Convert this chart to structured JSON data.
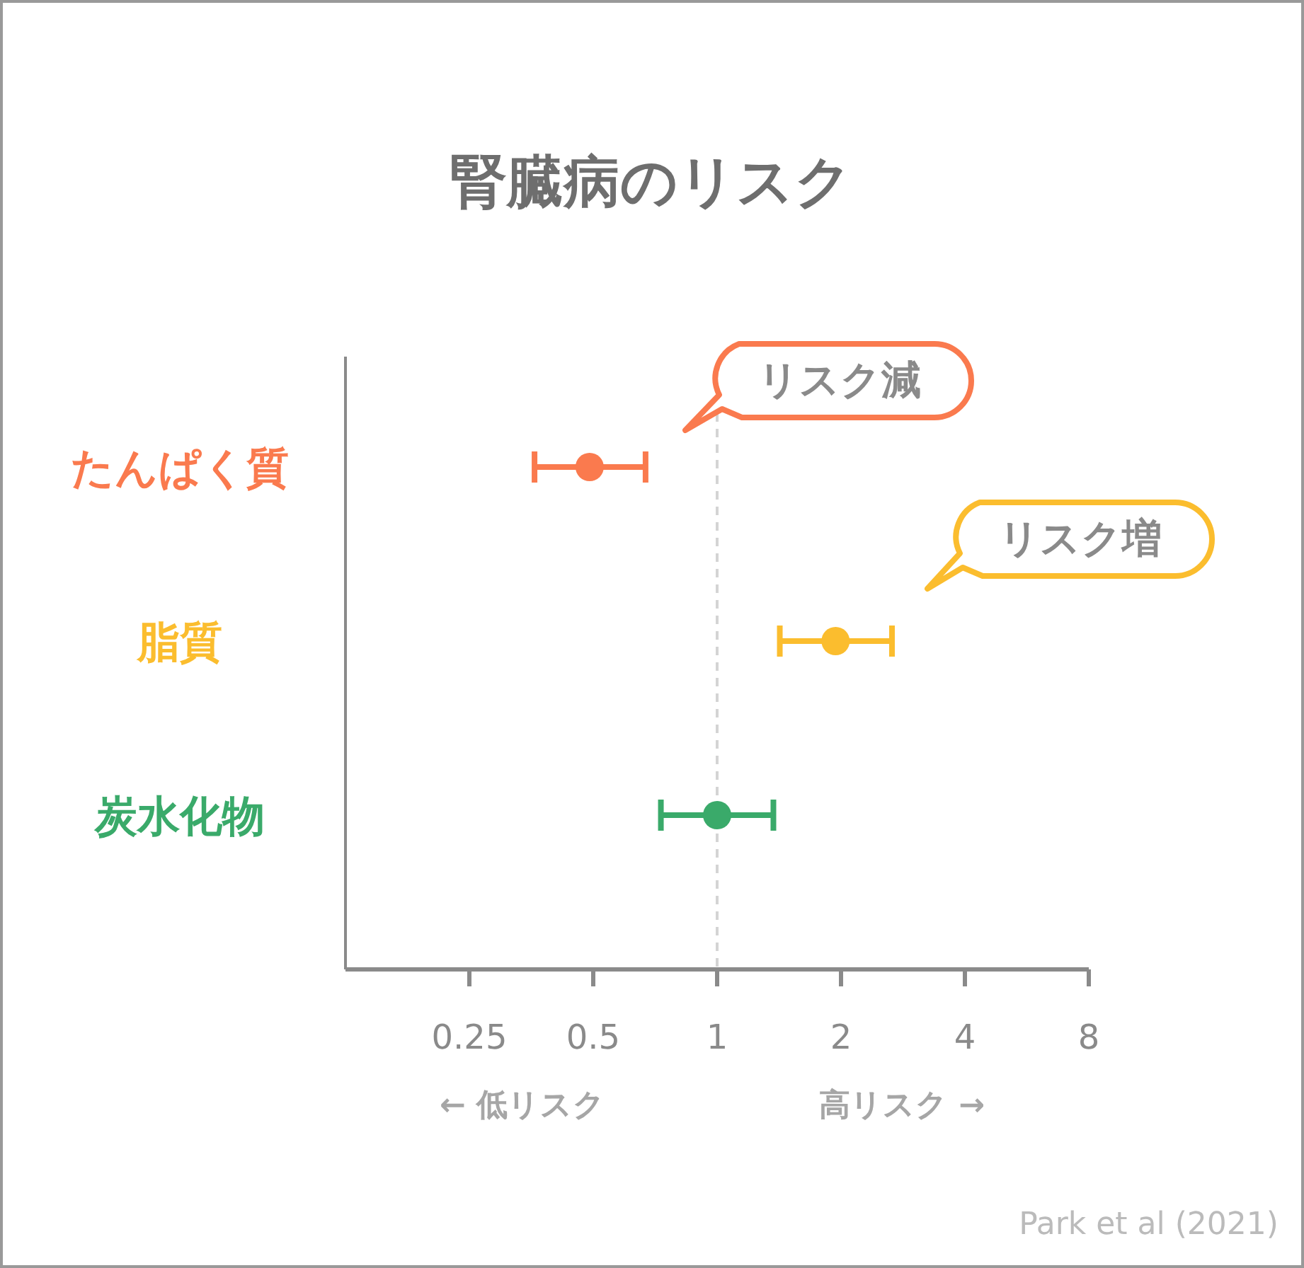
{
  "chart_data": {
    "type": "scatter",
    "orientation": "horizontal",
    "title": "腎臓病のリスク",
    "categories": [
      "たんぱく質",
      "脂質",
      "炭水化物"
    ],
    "values": [
      0.49,
      1.94,
      1.0
    ],
    "colors": [
      "#fa7a4e",
      "#fbbd2e",
      "#3aaa6a"
    ],
    "errors": [
      [
        0.36,
        0.67
      ],
      [
        1.42,
        2.66
      ],
      [
        0.73,
        1.37
      ]
    ],
    "log": "x",
    "xlim": [
      0.125,
      8
    ],
    "xticks": [
      0.25,
      0.5,
      1,
      2,
      4,
      8
    ],
    "ref_lines": [
      {
        "axis": "x",
        "value": 1,
        "color": "#d4d4d4",
        "line_style": "dashed"
      }
    ],
    "annotations": [
      "リスク減",
      "リスク増",
      "← 低リスク",
      "高リスク →",
      "Park et al (2021)"
    ],
    "marker": "circle",
    "grid": false
  }
}
